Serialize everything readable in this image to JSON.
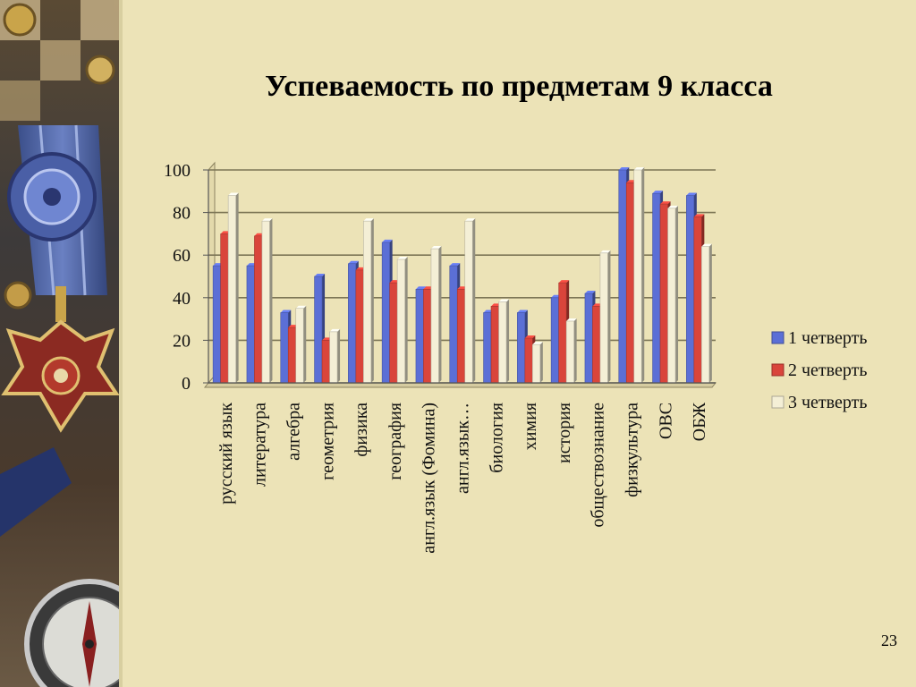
{
  "slide": {
    "title": "Успеваемость по предметам 9 класса",
    "page_number": "23"
  },
  "decor": {
    "description_icons": [
      "medal-icon",
      "ribbon-icon",
      "compass-icon",
      "button-icon"
    ]
  },
  "chart_data": {
    "type": "bar",
    "title": "",
    "xlabel": "",
    "ylabel": "",
    "ylim": [
      0,
      100
    ],
    "yticks": [
      0,
      20,
      40,
      60,
      80,
      100
    ],
    "grid": true,
    "legend_position": "right",
    "categories": [
      "русский язык",
      "литература",
      "алгебра",
      "геометрия",
      "физика",
      "география",
      "англ.язык (Фомина)",
      "англ.язык…",
      "биология",
      "химия",
      "история",
      "обществознание",
      "физкультура",
      "ОВС",
      "ОБЖ"
    ],
    "series": [
      {
        "name": "1 четверть",
        "color": "#5b6fd6",
        "values": [
          55,
          55,
          33,
          50,
          56,
          66,
          44,
          55,
          33,
          33,
          40,
          42,
          100,
          89,
          88
        ]
      },
      {
        "name": "2 четверть",
        "color": "#d9453b",
        "values": [
          70,
          69,
          26,
          20,
          53,
          47,
          44,
          44,
          36,
          21,
          47,
          36,
          94,
          84,
          78
        ]
      },
      {
        "name": "3 четверть",
        "color": "#f4efd6",
        "values": [
          88,
          76,
          35,
          24,
          76,
          58,
          63,
          76,
          38,
          18,
          29,
          61,
          100,
          82,
          64
        ]
      }
    ]
  }
}
